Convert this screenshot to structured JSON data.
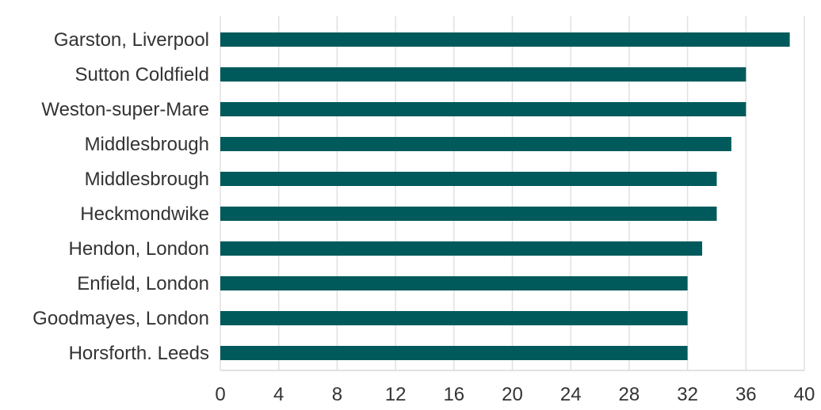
{
  "chart_data": {
    "type": "bar",
    "orientation": "horizontal",
    "categories": [
      "Garston, Liverpool",
      "Sutton Coldfield",
      "Weston-super-Mare",
      "Middlesbrough",
      "Middlesbrough",
      "Heckmondwike",
      "Hendon, London",
      "Enfield, London",
      "Goodmayes, London",
      "Horsforth. Leeds"
    ],
    "values": [
      39,
      36,
      36,
      35,
      34,
      34,
      33,
      32,
      32,
      32
    ],
    "xticks": [
      0,
      4,
      8,
      12,
      16,
      20,
      24,
      28,
      32,
      36,
      40
    ],
    "xlim": [
      0,
      40
    ],
    "bar_color": "#005a5b",
    "grid": "vertical",
    "legend": "none"
  }
}
